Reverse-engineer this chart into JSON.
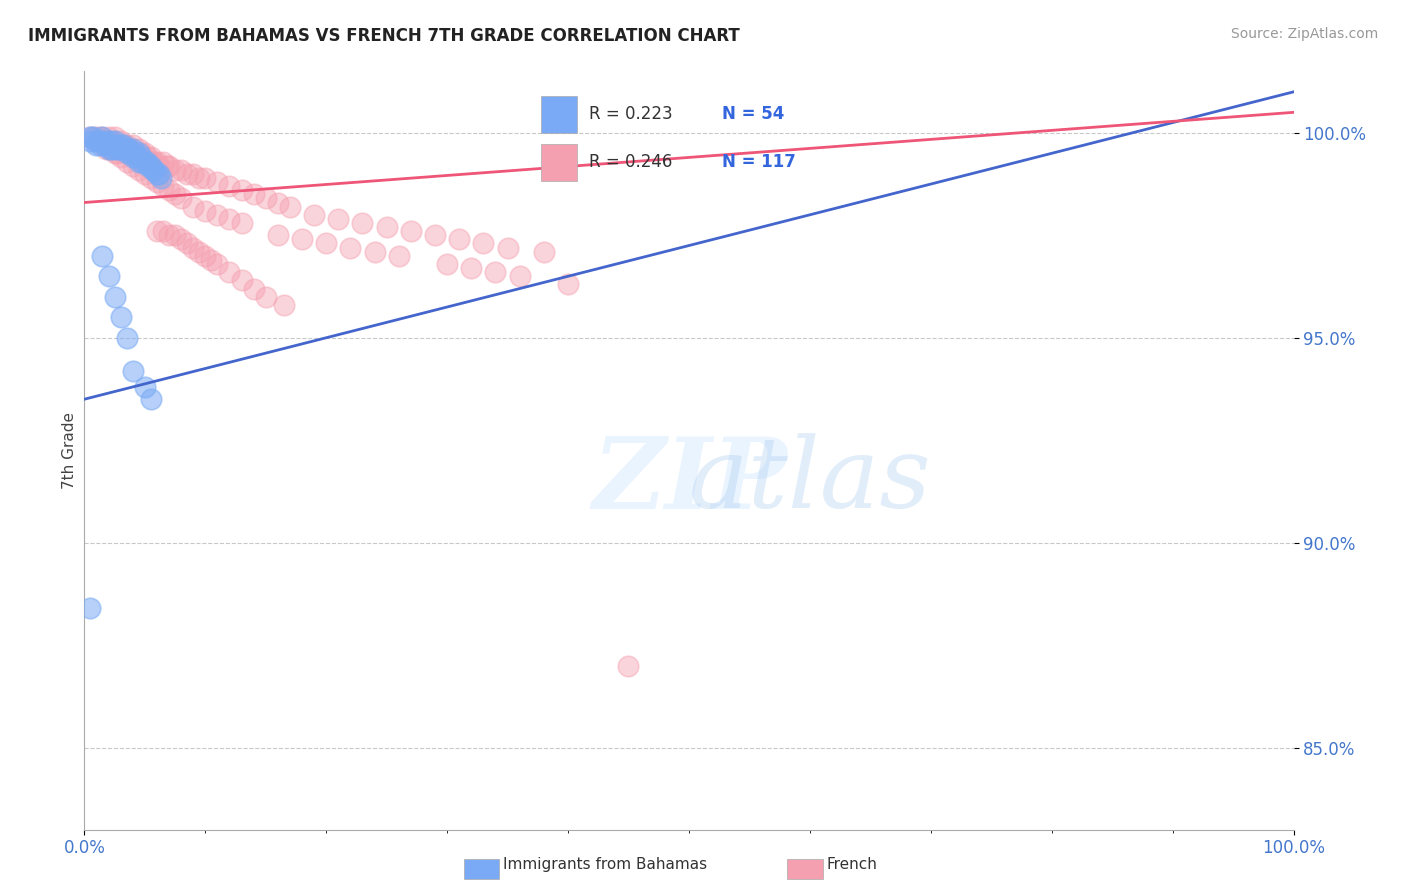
{
  "title": "IMMIGRANTS FROM BAHAMAS VS FRENCH 7TH GRADE CORRELATION CHART",
  "source": "Source: ZipAtlas.com",
  "ylabel": "7th Grade",
  "xlim": [
    0.0,
    1.0
  ],
  "ylim": [
    0.83,
    1.015
  ],
  "yticks": [
    0.85,
    0.9,
    0.95,
    1.0
  ],
  "ytick_labels": [
    "85.0%",
    "90.0%",
    "95.0%",
    "100.0%"
  ],
  "xtick_labels": [
    "0.0%",
    "100.0%"
  ],
  "xticks": [
    0.0,
    1.0
  ],
  "legend_r_blue": "R = 0.223",
  "legend_n_blue": "N = 54",
  "legend_r_pink": "R = 0.246",
  "legend_n_pink": "N = 117",
  "blue_color": "#7aaaf5",
  "pink_color": "#f5a0b0",
  "trend_blue": "#4466cc",
  "trend_pink": "#ee5577",
  "blue_trend_x": [
    0.0,
    1.0
  ],
  "blue_trend_y": [
    0.935,
    1.01
  ],
  "pink_trend_x": [
    0.0,
    1.0
  ],
  "pink_trend_y": [
    0.983,
    1.005
  ],
  "blue_scatter_x": [
    0.005,
    0.005,
    0.007,
    0.01,
    0.01,
    0.012,
    0.013,
    0.015,
    0.015,
    0.017,
    0.018,
    0.02,
    0.02,
    0.022,
    0.022,
    0.023,
    0.025,
    0.025,
    0.027,
    0.028,
    0.03,
    0.03,
    0.032,
    0.033,
    0.035,
    0.035,
    0.037,
    0.038,
    0.04,
    0.04,
    0.042,
    0.043,
    0.045,
    0.045,
    0.047,
    0.048,
    0.05,
    0.052,
    0.053,
    0.055,
    0.057,
    0.058,
    0.06,
    0.062,
    0.063,
    0.015,
    0.02,
    0.025,
    0.03,
    0.035,
    0.005,
    0.04,
    0.05,
    0.055
  ],
  "blue_scatter_y": [
    0.999,
    0.998,
    0.999,
    0.998,
    0.997,
    0.998,
    0.997,
    0.999,
    0.998,
    0.997,
    0.998,
    0.997,
    0.996,
    0.998,
    0.996,
    0.997,
    0.998,
    0.996,
    0.997,
    0.996,
    0.997,
    0.996,
    0.996,
    0.997,
    0.996,
    0.995,
    0.996,
    0.995,
    0.996,
    0.994,
    0.995,
    0.994,
    0.995,
    0.993,
    0.994,
    0.993,
    0.993,
    0.993,
    0.992,
    0.992,
    0.991,
    0.991,
    0.99,
    0.99,
    0.989,
    0.97,
    0.965,
    0.96,
    0.955,
    0.95,
    0.884,
    0.942,
    0.938,
    0.935
  ],
  "pink_scatter_x": [
    0.005,
    0.008,
    0.01,
    0.012,
    0.013,
    0.015,
    0.015,
    0.017,
    0.018,
    0.02,
    0.02,
    0.022,
    0.023,
    0.025,
    0.025,
    0.027,
    0.028,
    0.03,
    0.03,
    0.032,
    0.033,
    0.035,
    0.035,
    0.037,
    0.038,
    0.04,
    0.04,
    0.042,
    0.043,
    0.045,
    0.047,
    0.048,
    0.05,
    0.052,
    0.053,
    0.055,
    0.058,
    0.06,
    0.062,
    0.065,
    0.068,
    0.07,
    0.075,
    0.08,
    0.085,
    0.09,
    0.095,
    0.1,
    0.11,
    0.12,
    0.13,
    0.14,
    0.15,
    0.16,
    0.17,
    0.19,
    0.21,
    0.23,
    0.25,
    0.27,
    0.29,
    0.31,
    0.33,
    0.35,
    0.38,
    0.02,
    0.025,
    0.03,
    0.035,
    0.04,
    0.045,
    0.05,
    0.055,
    0.06,
    0.065,
    0.07,
    0.075,
    0.08,
    0.09,
    0.1,
    0.11,
    0.12,
    0.13,
    0.16,
    0.18,
    0.2,
    0.22,
    0.24,
    0.26,
    0.3,
    0.32,
    0.34,
    0.36,
    0.4,
    0.015,
    0.02,
    0.018,
    0.022,
    0.025,
    0.027,
    0.06,
    0.065,
    0.07,
    0.075,
    0.08,
    0.085,
    0.09,
    0.095,
    0.1,
    0.105,
    0.11,
    0.12,
    0.13,
    0.14,
    0.15,
    0.165,
    0.45
  ],
  "pink_scatter_y": [
    0.999,
    0.999,
    0.998,
    0.999,
    0.998,
    0.999,
    0.998,
    0.997,
    0.998,
    0.999,
    0.997,
    0.998,
    0.997,
    0.999,
    0.997,
    0.997,
    0.997,
    0.998,
    0.996,
    0.997,
    0.997,
    0.997,
    0.996,
    0.996,
    0.996,
    0.997,
    0.995,
    0.995,
    0.995,
    0.996,
    0.995,
    0.994,
    0.995,
    0.994,
    0.993,
    0.994,
    0.993,
    0.993,
    0.992,
    0.993,
    0.992,
    0.992,
    0.991,
    0.991,
    0.99,
    0.99,
    0.989,
    0.989,
    0.988,
    0.987,
    0.986,
    0.985,
    0.984,
    0.983,
    0.982,
    0.98,
    0.979,
    0.978,
    0.977,
    0.976,
    0.975,
    0.974,
    0.973,
    0.972,
    0.971,
    0.996,
    0.995,
    0.994,
    0.993,
    0.992,
    0.991,
    0.99,
    0.989,
    0.988,
    0.987,
    0.986,
    0.985,
    0.984,
    0.982,
    0.981,
    0.98,
    0.979,
    0.978,
    0.975,
    0.974,
    0.973,
    0.972,
    0.971,
    0.97,
    0.968,
    0.967,
    0.966,
    0.965,
    0.963,
    0.998,
    0.997,
    0.996,
    0.996,
    0.996,
    0.995,
    0.976,
    0.976,
    0.975,
    0.975,
    0.974,
    0.973,
    0.972,
    0.971,
    0.97,
    0.969,
    0.968,
    0.966,
    0.964,
    0.962,
    0.96,
    0.958,
    0.87
  ]
}
